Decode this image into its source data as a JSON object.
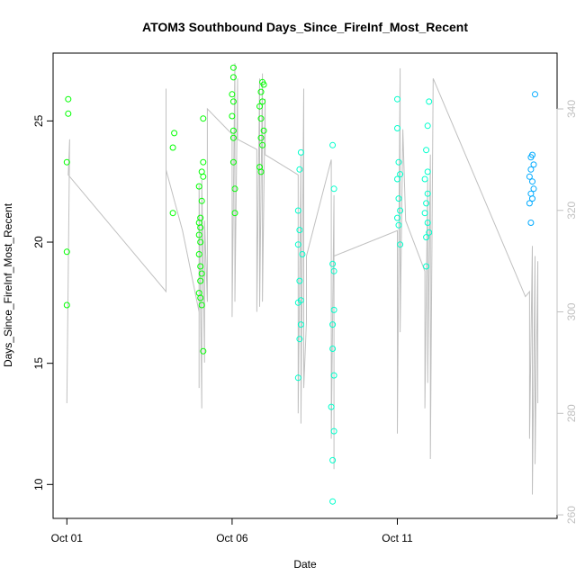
{
  "chart_data": {
    "type": "scatter",
    "title": "ATOM3 Southbound Days_Since_FireInf_Most_Recent",
    "xlabel": "Date",
    "ylabel": "Days_Since_FireInf_Most_Recent",
    "x_tick_labels": [
      "Oct 01",
      "Oct 06",
      "Oct 11"
    ],
    "x_tick_values": [
      "2023-10-01",
      "2023-10-06",
      "2023-10-11"
    ],
    "xlim": [
      "2023-09-30T14:00",
      "2023-10-15T20:00"
    ],
    "ylim": [
      8.6,
      27.8
    ],
    "y_ticks": [
      10,
      15,
      20,
      25
    ],
    "y2_ticks": [
      260,
      280,
      300,
      320,
      340
    ],
    "y2lim": [
      259.3,
      351.0
    ],
    "colors": {
      "line": "#c0c0c0",
      "point_early": "#00ff00",
      "point_mid": "#00ffcc",
      "point_late": "#00aaff",
      "right_axis": "#c0c0c0"
    },
    "series": [
      {
        "kind": "points",
        "points": [
          {
            "x": "2023-10-01T01:00",
            "y": 25.9
          },
          {
            "x": "2023-10-01T01:00",
            "y": 25.3
          },
          {
            "x": "2023-10-01T00:00",
            "y": 23.3
          },
          {
            "x": "2023-10-01T00:00",
            "y": 19.6
          },
          {
            "x": "2023-10-01T00:00",
            "y": 17.4
          },
          {
            "x": "2023-10-04T06:00",
            "y": 24.5
          },
          {
            "x": "2023-10-04T05:00",
            "y": 23.9
          },
          {
            "x": "2023-10-04T05:00",
            "y": 21.2
          },
          {
            "x": "2023-10-05T03:00",
            "y": 25.1
          },
          {
            "x": "2023-10-05T03:00",
            "y": 23.3
          },
          {
            "x": "2023-10-05T02:00",
            "y": 22.9
          },
          {
            "x": "2023-10-05T03:00",
            "y": 22.7
          },
          {
            "x": "2023-10-05T00:00",
            "y": 22.3
          },
          {
            "x": "2023-10-05T02:00",
            "y": 21.7
          },
          {
            "x": "2023-10-05T01:00",
            "y": 21.0
          },
          {
            "x": "2023-10-05T00:00",
            "y": 20.8
          },
          {
            "x": "2023-10-05T01:00",
            "y": 20.6
          },
          {
            "x": "2023-10-05T00:00",
            "y": 20.3
          },
          {
            "x": "2023-10-05T01:00",
            "y": 20.0
          },
          {
            "x": "2023-10-05T00:00",
            "y": 19.5
          },
          {
            "x": "2023-10-05T01:00",
            "y": 19.0
          },
          {
            "x": "2023-10-05T02:00",
            "y": 18.7
          },
          {
            "x": "2023-10-05T01:00",
            "y": 18.4
          },
          {
            "x": "2023-10-05T00:00",
            "y": 17.9
          },
          {
            "x": "2023-10-05T01:00",
            "y": 17.7
          },
          {
            "x": "2023-10-05T02:00",
            "y": 17.4
          },
          {
            "x": "2023-10-05T03:00",
            "y": 15.5
          },
          {
            "x": "2023-10-06T01:00",
            "y": 27.2
          },
          {
            "x": "2023-10-06T01:00",
            "y": 26.8
          },
          {
            "x": "2023-10-06T00:00",
            "y": 26.1
          },
          {
            "x": "2023-10-06T01:00",
            "y": 25.8
          },
          {
            "x": "2023-10-06T00:00",
            "y": 25.2
          },
          {
            "x": "2023-10-06T01:00",
            "y": 24.6
          },
          {
            "x": "2023-10-06T01:00",
            "y": 24.3
          },
          {
            "x": "2023-10-06T01:00",
            "y": 23.3
          },
          {
            "x": "2023-10-06T02:00",
            "y": 22.2
          },
          {
            "x": "2023-10-06T02:00",
            "y": 21.2
          },
          {
            "x": "2023-10-06T22:00",
            "y": 26.6
          },
          {
            "x": "2023-10-06T23:00",
            "y": 26.5
          },
          {
            "x": "2023-10-06T21:00",
            "y": 26.2
          },
          {
            "x": "2023-10-06T22:00",
            "y": 25.8
          },
          {
            "x": "2023-10-06T20:00",
            "y": 25.6
          },
          {
            "x": "2023-10-06T21:00",
            "y": 25.1
          },
          {
            "x": "2023-10-06T23:00",
            "y": 24.6
          },
          {
            "x": "2023-10-06T21:00",
            "y": 24.3
          },
          {
            "x": "2023-10-06T22:00",
            "y": 24.0
          },
          {
            "x": "2023-10-06T20:00",
            "y": 23.1
          },
          {
            "x": "2023-10-06T21:00",
            "y": 22.9
          },
          {
            "x": "2023-10-08T02:00",
            "y": 23.7
          },
          {
            "x": "2023-10-08T01:00",
            "y": 23.0
          },
          {
            "x": "2023-10-08T00:00",
            "y": 21.3
          },
          {
            "x": "2023-10-08T01:00",
            "y": 20.5
          },
          {
            "x": "2023-10-08T00:00",
            "y": 19.9
          },
          {
            "x": "2023-10-08T03:00",
            "y": 19.5
          },
          {
            "x": "2023-10-08T01:00",
            "y": 18.4
          },
          {
            "x": "2023-10-08T02:00",
            "y": 17.6
          },
          {
            "x": "2023-10-08T00:00",
            "y": 17.5
          },
          {
            "x": "2023-10-08T02:00",
            "y": 16.6
          },
          {
            "x": "2023-10-08T01:00",
            "y": 16.0
          },
          {
            "x": "2023-10-08T00:00",
            "y": 14.4
          },
          {
            "x": "2023-10-09T01:00",
            "y": 24.0
          },
          {
            "x": "2023-10-09T02:00",
            "y": 22.2
          },
          {
            "x": "2023-10-09T01:00",
            "y": 19.1
          },
          {
            "x": "2023-10-09T02:00",
            "y": 18.8
          },
          {
            "x": "2023-10-09T02:00",
            "y": 17.2
          },
          {
            "x": "2023-10-09T01:00",
            "y": 16.6
          },
          {
            "x": "2023-10-09T01:00",
            "y": 15.6
          },
          {
            "x": "2023-10-09T02:00",
            "y": 14.5
          },
          {
            "x": "2023-10-09T00:00",
            "y": 13.2
          },
          {
            "x": "2023-10-09T02:00",
            "y": 12.2
          },
          {
            "x": "2023-10-09T01:00",
            "y": 11.0
          },
          {
            "x": "2023-10-09T01:00",
            "y": 9.3
          },
          {
            "x": "2023-10-11T00:00",
            "y": 25.9
          },
          {
            "x": "2023-10-11T00:00",
            "y": 24.7
          },
          {
            "x": "2023-10-11T01:00",
            "y": 23.3
          },
          {
            "x": "2023-10-11T02:00",
            "y": 22.8
          },
          {
            "x": "2023-10-11T00:00",
            "y": 22.6
          },
          {
            "x": "2023-10-11T01:00",
            "y": 21.8
          },
          {
            "x": "2023-10-11T02:00",
            "y": 21.3
          },
          {
            "x": "2023-10-11T00:00",
            "y": 21.0
          },
          {
            "x": "2023-10-11T01:00",
            "y": 20.7
          },
          {
            "x": "2023-10-11T02:00",
            "y": 19.9
          },
          {
            "x": "2023-10-11T23:00",
            "y": 25.8
          },
          {
            "x": "2023-10-11T22:00",
            "y": 24.8
          },
          {
            "x": "2023-10-11T21:00",
            "y": 23.8
          },
          {
            "x": "2023-10-11T22:00",
            "y": 22.9
          },
          {
            "x": "2023-10-11T20:00",
            "y": 22.6
          },
          {
            "x": "2023-10-11T22:00",
            "y": 22.0
          },
          {
            "x": "2023-10-11T21:00",
            "y": 21.6
          },
          {
            "x": "2023-10-11T20:00",
            "y": 21.2
          },
          {
            "x": "2023-10-11T22:00",
            "y": 20.8
          },
          {
            "x": "2023-10-11T23:00",
            "y": 20.4
          },
          {
            "x": "2023-10-11T21:00",
            "y": 20.2
          },
          {
            "x": "2023-10-11T21:00",
            "y": 19.0
          },
          {
            "x": "2023-10-15T04:00",
            "y": 26.1
          },
          {
            "x": "2023-10-15T02:00",
            "y": 23.6
          },
          {
            "x": "2023-10-15T01:00",
            "y": 23.5
          },
          {
            "x": "2023-10-15T03:00",
            "y": 23.2
          },
          {
            "x": "2023-10-15T01:00",
            "y": 23.0
          },
          {
            "x": "2023-10-15T00:00",
            "y": 22.7
          },
          {
            "x": "2023-10-15T02:00",
            "y": 22.5
          },
          {
            "x": "2023-10-15T03:00",
            "y": 22.2
          },
          {
            "x": "2023-10-15T01:00",
            "y": 22.0
          },
          {
            "x": "2023-10-15T02:00",
            "y": 21.8
          },
          {
            "x": "2023-10-15T00:00",
            "y": 21.6
          },
          {
            "x": "2023-10-15T01:00",
            "y": 20.8
          }
        ]
      },
      {
        "kind": "line",
        "axis": "right",
        "points": [
          {
            "x": "2023-10-01T00:00",
            "y": 282
          },
          {
            "x": "2023-10-01T02:00",
            "y": 334
          },
          {
            "x": "2023-10-01T01:00",
            "y": 327
          },
          {
            "x": "2023-10-04T00:00",
            "y": 304
          },
          {
            "x": "2023-10-04T00:00",
            "y": 344
          },
          {
            "x": "2023-10-04T00:00",
            "y": 328
          },
          {
            "x": "2023-10-04T12:00",
            "y": 316
          },
          {
            "x": "2023-10-05T00:00",
            "y": 300
          },
          {
            "x": "2023-10-05T00:00",
            "y": 285
          },
          {
            "x": "2023-10-05T00:00",
            "y": 325
          },
          {
            "x": "2023-10-05T02:00",
            "y": 281
          },
          {
            "x": "2023-10-05T02:00",
            "y": 326
          },
          {
            "x": "2023-10-05T04:00",
            "y": 290
          },
          {
            "x": "2023-10-05T04:00",
            "y": 318
          },
          {
            "x": "2023-10-05T06:00",
            "y": 302
          },
          {
            "x": "2023-10-05T06:00",
            "y": 320
          },
          {
            "x": "2023-10-05T06:00",
            "y": 340
          },
          {
            "x": "2023-10-06T00:00",
            "y": 335
          },
          {
            "x": "2023-10-06T00:00",
            "y": 299
          },
          {
            "x": "2023-10-06T02:00",
            "y": 349
          },
          {
            "x": "2023-10-06T02:00",
            "y": 302
          },
          {
            "x": "2023-10-06T04:00",
            "y": 346
          },
          {
            "x": "2023-10-06T04:00",
            "y": 334
          },
          {
            "x": "2023-10-06T18:00",
            "y": 332
          },
          {
            "x": "2023-10-06T18:00",
            "y": 300
          },
          {
            "x": "2023-10-06T20:00",
            "y": 346
          },
          {
            "x": "2023-10-06T20:00",
            "y": 301
          },
          {
            "x": "2023-10-06T22:00",
            "y": 347
          },
          {
            "x": "2023-10-06T22:00",
            "y": 302
          },
          {
            "x": "2023-10-07T00:00",
            "y": 342
          },
          {
            "x": "2023-10-07T00:00",
            "y": 331
          },
          {
            "x": "2023-10-08T00:00",
            "y": 327
          },
          {
            "x": "2023-10-08T00:00",
            "y": 280
          },
          {
            "x": "2023-10-08T02:00",
            "y": 331
          },
          {
            "x": "2023-10-08T02:00",
            "y": 278
          },
          {
            "x": "2023-10-08T04:00",
            "y": 344
          },
          {
            "x": "2023-10-08T04:00",
            "y": 285
          },
          {
            "x": "2023-10-08T06:00",
            "y": 298
          },
          {
            "x": "2023-10-08T06:00",
            "y": 311
          },
          {
            "x": "2023-10-09T00:00",
            "y": 330
          },
          {
            "x": "2023-10-09T00:00",
            "y": 275
          },
          {
            "x": "2023-10-09T02:00",
            "y": 323
          },
          {
            "x": "2023-10-09T02:00",
            "y": 269
          },
          {
            "x": "2023-10-09T02:00",
            "y": 311
          },
          {
            "x": "2023-10-11T00:00",
            "y": 316
          },
          {
            "x": "2023-10-11T00:00",
            "y": 276
          },
          {
            "x": "2023-10-11T02:00",
            "y": 348
          },
          {
            "x": "2023-10-11T02:00",
            "y": 296
          },
          {
            "x": "2023-10-11T04:00",
            "y": 336
          },
          {
            "x": "2023-10-11T06:00",
            "y": 318
          },
          {
            "x": "2023-10-11T20:00",
            "y": 308
          },
          {
            "x": "2023-10-11T20:00",
            "y": 281
          },
          {
            "x": "2023-10-11T22:00",
            "y": 326
          },
          {
            "x": "2023-10-11T22:00",
            "y": 286
          },
          {
            "x": "2023-10-12T00:00",
            "y": 331
          },
          {
            "x": "2023-10-12T00:00",
            "y": 271
          },
          {
            "x": "2023-10-12T02:00",
            "y": 346
          },
          {
            "x": "2023-10-14T21:00",
            "y": 303
          },
          {
            "x": "2023-10-15T00:00",
            "y": 304
          },
          {
            "x": "2023-10-15T00:00",
            "y": 275
          },
          {
            "x": "2023-10-15T02:00",
            "y": 313
          },
          {
            "x": "2023-10-15T02:00",
            "y": 264
          },
          {
            "x": "2023-10-15T04:00",
            "y": 311
          },
          {
            "x": "2023-10-15T04:00",
            "y": 270
          },
          {
            "x": "2023-10-15T06:00",
            "y": 310
          },
          {
            "x": "2023-10-15T06:00",
            "y": 282
          }
        ]
      }
    ]
  }
}
